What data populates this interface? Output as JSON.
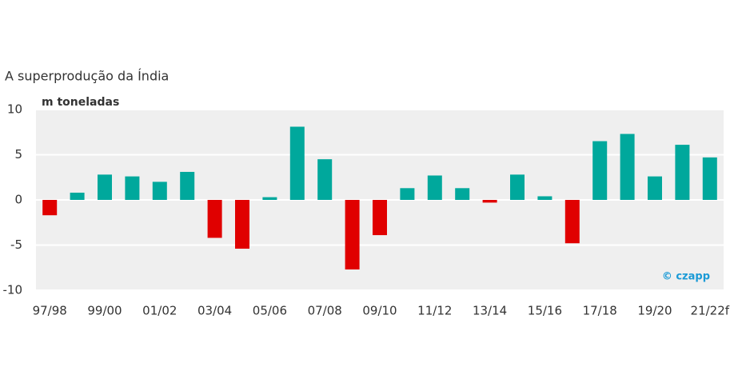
{
  "chart_data": {
    "type": "bar",
    "title": "A superprodução da Índia",
    "subtitle": "m toneladas",
    "credit": "© czapp",
    "categories": [
      "97/98",
      null,
      "99/00",
      null,
      "01/02",
      null,
      "03/04",
      null,
      "05/06",
      null,
      "07/08",
      null,
      "09/10",
      null,
      "11/12",
      null,
      "13/14",
      null,
      "15/16",
      null,
      "17/18",
      null,
      "19/20",
      null,
      "21/22f"
    ],
    "values": [
      -1.7,
      0.8,
      2.8,
      2.6,
      2.0,
      3.1,
      -4.2,
      -5.4,
      0.3,
      8.1,
      4.5,
      -7.7,
      -3.9,
      1.3,
      2.7,
      1.3,
      -0.3,
      2.8,
      0.4,
      -4.8,
      6.5,
      7.3,
      2.6,
      6.1,
      4.7
    ],
    "positive_color": "#00a89c",
    "negative_color": "#e00000",
    "ylim": [
      -10,
      10
    ],
    "yticks": [
      -10,
      -5,
      0,
      5,
      10
    ],
    "grid": true
  }
}
